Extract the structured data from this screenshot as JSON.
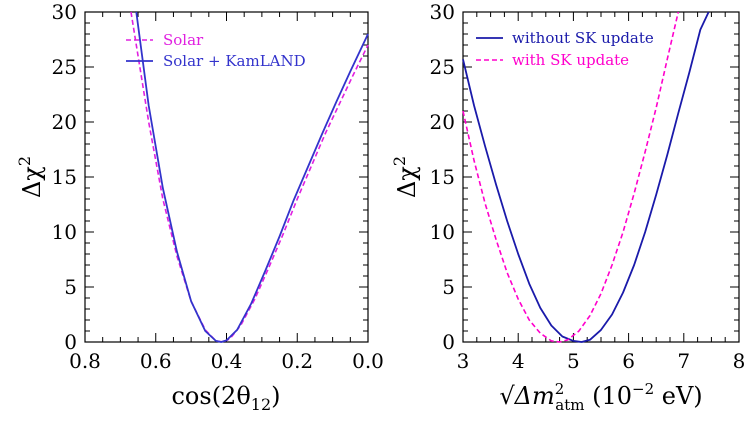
{
  "chart_data": [
    {
      "type": "line",
      "xlabel": "cos(2θ12)",
      "xlabel_parts": {
        "base": "cos(2θ",
        "sub": "12",
        "tail": ")"
      },
      "ylabel": "Δχ2",
      "ylabel_parts": {
        "base": "Δχ",
        "sup": "2"
      },
      "xlim": [
        0.8,
        0.0
      ],
      "ylim": [
        0,
        30
      ],
      "x_reversed": true,
      "xticks": [
        0.8,
        0.6,
        0.4,
        0.2,
        0.0
      ],
      "xtick_labels": [
        "0.8",
        "0.6",
        "0.4",
        "0.2",
        "0.0"
      ],
      "yticks": [
        0,
        5,
        10,
        15,
        20,
        25,
        30
      ],
      "ytick_labels": [
        "0",
        "5",
        "10",
        "15",
        "20",
        "25",
        "30"
      ],
      "legend_placement": "top-right",
      "grid": false,
      "series": [
        {
          "name": "Solar",
          "style": "dashed",
          "color": "#e020e0",
          "x": [
            0.67,
            0.62,
            0.58,
            0.54,
            0.5,
            0.46,
            0.43,
            0.41,
            0.39,
            0.36,
            0.32,
            0.28,
            0.24,
            0.2,
            0.16,
            0.12,
            0.08,
            0.04,
            0.0
          ],
          "y": [
            30.0,
            20.0,
            13.0,
            7.8,
            3.7,
            1.1,
            0.1,
            0.0,
            0.3,
            1.5,
            3.9,
            6.8,
            9.8,
            13.0,
            16.0,
            19.0,
            21.7,
            24.4,
            27.0
          ]
        },
        {
          "name": "Solar + KamLAND",
          "style": "solid",
          "color": "#3333cc",
          "x": [
            0.655,
            0.62,
            0.58,
            0.54,
            0.5,
            0.46,
            0.43,
            0.415,
            0.4,
            0.37,
            0.33,
            0.29,
            0.25,
            0.21,
            0.17,
            0.13,
            0.09,
            0.05,
            0.0
          ],
          "y": [
            30.0,
            21.5,
            14.0,
            8.2,
            3.7,
            1.0,
            0.1,
            0.0,
            0.15,
            1.1,
            3.5,
            6.5,
            9.6,
            12.9,
            15.9,
            18.9,
            21.8,
            24.6,
            28.0
          ]
        }
      ]
    },
    {
      "type": "line",
      "xlabel": "√Δm2atm (10−2 eV)",
      "xlabel_parts": {
        "sqrt": "√",
        "base": "Δm",
        "sup": "2",
        "sub": "atm",
        "tail_a": " (10",
        "tail_sup": "−2",
        "tail_b": " eV)"
      },
      "ylabel": "Δχ2",
      "ylabel_parts": {
        "base": "Δχ",
        "sup": "2"
      },
      "xlim": [
        3,
        8
      ],
      "ylim": [
        0,
        30
      ],
      "x_reversed": false,
      "xticks": [
        3,
        4,
        5,
        6,
        7,
        8
      ],
      "xtick_labels": [
        "3",
        "4",
        "5",
        "6",
        "7",
        "8"
      ],
      "yticks": [
        0,
        5,
        10,
        15,
        20,
        25,
        30
      ],
      "ytick_labels": [
        "0",
        "5",
        "10",
        "15",
        "20",
        "25",
        "30"
      ],
      "legend_placement": "top-left",
      "grid": false,
      "series": [
        {
          "name": "without SK update",
          "style": "solid",
          "color": "#1a1aaa",
          "x": [
            3.0,
            3.2,
            3.4,
            3.6,
            3.8,
            4.0,
            4.2,
            4.4,
            4.6,
            4.8,
            5.0,
            5.15,
            5.3,
            5.5,
            5.7,
            5.9,
            6.1,
            6.3,
            6.5,
            6.7,
            6.9,
            7.1,
            7.3,
            7.45
          ],
          "y": [
            25.7,
            21.5,
            17.8,
            14.3,
            11.0,
            8.0,
            5.3,
            3.1,
            1.5,
            0.5,
            0.1,
            0.0,
            0.2,
            1.1,
            2.5,
            4.5,
            7.0,
            10.0,
            13.4,
            17.0,
            20.8,
            24.5,
            28.4,
            30.0
          ]
        },
        {
          "name": "with SK update",
          "style": "dashed",
          "color": "#ff00cc",
          "x": [
            3.0,
            3.2,
            3.4,
            3.6,
            3.8,
            4.0,
            4.2,
            4.4,
            4.6,
            4.75,
            4.9,
            5.1,
            5.3,
            5.5,
            5.7,
            5.9,
            6.1,
            6.3,
            6.5,
            6.7,
            6.9
          ],
          "y": [
            21.0,
            16.5,
            12.6,
            9.3,
            6.3,
            3.9,
            2.0,
            0.8,
            0.1,
            0.0,
            0.2,
            1.0,
            2.4,
            4.4,
            7.0,
            10.0,
            13.5,
            17.3,
            21.3,
            25.7,
            30.0
          ]
        }
      ]
    }
  ]
}
